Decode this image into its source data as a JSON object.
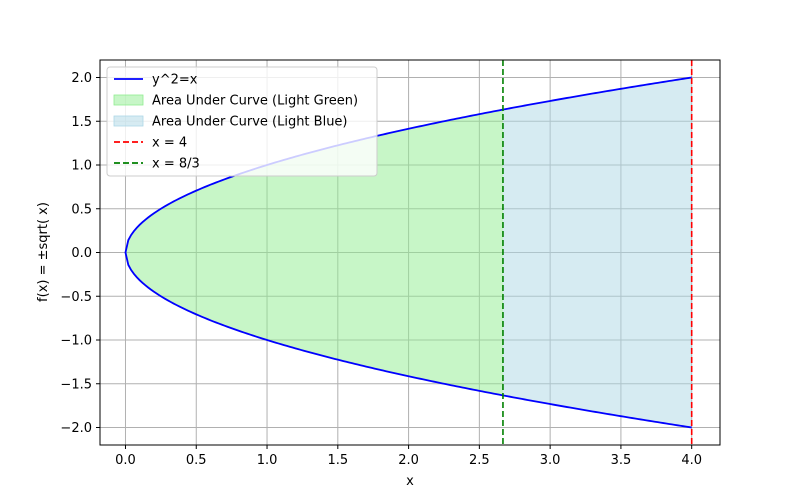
{
  "chart_data": {
    "type": "line",
    "title": "",
    "xlabel": "x",
    "ylabel": "f(x) = ±sqrt( x)",
    "xlim": [
      -0.18,
      4.2
    ],
    "ylim": [
      -2.2,
      2.2
    ],
    "x_ticks": [
      0.0,
      0.5,
      1.0,
      1.5,
      2.0,
      2.5,
      3.0,
      3.5,
      4.0
    ],
    "x_tick_labels": [
      "0.0",
      "0.5",
      "1.0",
      "1.5",
      "2.0",
      "2.5",
      "3.0",
      "3.5",
      "4.0"
    ],
    "y_ticks": [
      -2.0,
      -1.5,
      -1.0,
      -0.5,
      0.0,
      0.5,
      1.0,
      1.5,
      2.0
    ],
    "y_tick_labels": [
      "−2.0",
      "−1.5",
      "−1.0",
      "−0.5",
      "0.0",
      "0.5",
      "1.0",
      "1.5",
      "2.0"
    ],
    "grid": true,
    "legend_placement": "upper-left",
    "series": [
      {
        "name": "y^2=x",
        "kind": "curve",
        "function": "y^2=x",
        "x_range": [
          0,
          4
        ],
        "color": "#0000ff"
      },
      {
        "name": "Area Under Curve (Light Green)",
        "kind": "fill",
        "x_range": [
          0,
          2.6667
        ],
        "color": "#90ee90"
      },
      {
        "name": "Area Under Curve (Light Blue)",
        "kind": "fill",
        "x_range": [
          2.6667,
          4
        ],
        "color": "#add8e6"
      },
      {
        "name": "x = 4",
        "kind": "vline",
        "x": 4,
        "color": "#ff0000"
      },
      {
        "name": "x = 8/3",
        "kind": "vline",
        "x": 2.6667,
        "color": "#008000"
      }
    ]
  }
}
